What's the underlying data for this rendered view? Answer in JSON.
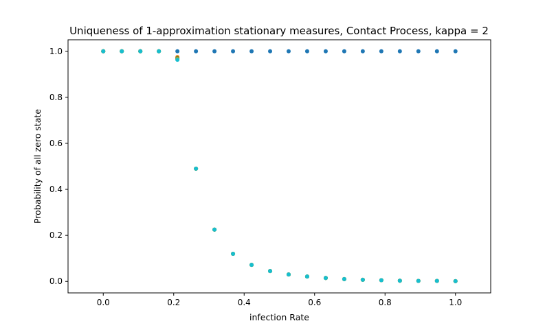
{
  "chart_data": {
    "type": "scatter",
    "title": "Uniqueness of 1-approximation stationary measures, Contact Process, kappa = 2",
    "xlabel": "infection Rate",
    "ylabel": "Probability of all zero state",
    "xlim": [
      -0.1,
      1.1
    ],
    "ylim": [
      -0.05,
      1.05
    ],
    "xticks": [
      0.0,
      0.2,
      0.4,
      0.6,
      0.8,
      1.0
    ],
    "yticks": [
      0.0,
      0.2,
      0.4,
      0.6,
      0.8,
      1.0
    ],
    "xtick_labels": [
      "0.0",
      "0.2",
      "0.4",
      "0.6",
      "0.8",
      "1.0"
    ],
    "ytick_labels": [
      "0.0",
      "0.2",
      "0.4",
      "0.6",
      "0.8",
      "1.0"
    ],
    "grid": false,
    "legend": "none",
    "x": [
      0.0,
      0.0526,
      0.1053,
      0.1579,
      0.2105,
      0.2632,
      0.3158,
      0.3684,
      0.4211,
      0.4737,
      0.5263,
      0.5789,
      0.6316,
      0.6842,
      0.7368,
      0.7895,
      0.8421,
      0.8947,
      0.9474,
      1.0
    ],
    "series": [
      {
        "color": "#1f77b4",
        "values": [
          1.0,
          1.0,
          1.0,
          1.0,
          1.0,
          1.0,
          1.0,
          1.0,
          1.0,
          1.0,
          1.0,
          1.0,
          1.0,
          1.0,
          1.0,
          1.0,
          1.0,
          1.0,
          1.0,
          1.0
        ]
      },
      {
        "color": "#ff7f0e",
        "values": [
          1.0,
          1.0,
          1.0,
          1.0,
          0.975,
          0.49,
          0.225,
          0.12,
          0.072,
          0.045,
          0.03,
          0.021,
          0.015,
          0.01,
          0.007,
          0.005,
          0.003,
          0.002,
          0.002,
          0.001
        ]
      },
      {
        "color": "#2ca02c",
        "values": [
          1.0,
          1.0,
          1.0,
          1.0,
          0.97,
          0.49,
          0.225,
          0.12,
          0.072,
          0.045,
          0.03,
          0.021,
          0.015,
          0.01,
          0.007,
          0.005,
          0.003,
          0.002,
          0.002,
          0.001
        ]
      },
      {
        "color": "#8c564b",
        "values": [
          1.0,
          1.0,
          1.0,
          1.0,
          0.968,
          0.49,
          0.225,
          0.12,
          0.072,
          0.045,
          0.03,
          0.021,
          0.015,
          0.01,
          0.007,
          0.005,
          0.003,
          0.002,
          0.002,
          0.001
        ]
      },
      {
        "color": "#bcbd22",
        "values": [
          1.0,
          1.0,
          1.0,
          1.0,
          0.966,
          0.49,
          0.225,
          0.12,
          0.072,
          0.045,
          0.03,
          0.021,
          0.015,
          0.01,
          0.007,
          0.005,
          0.003,
          0.002,
          0.002,
          0.001
        ]
      },
      {
        "color": "#17becf",
        "values": [
          1.0,
          1.0,
          1.0,
          1.0,
          0.963,
          0.49,
          0.225,
          0.12,
          0.072,
          0.045,
          0.03,
          0.021,
          0.015,
          0.01,
          0.007,
          0.005,
          0.003,
          0.002,
          0.002,
          0.001
        ]
      }
    ]
  }
}
